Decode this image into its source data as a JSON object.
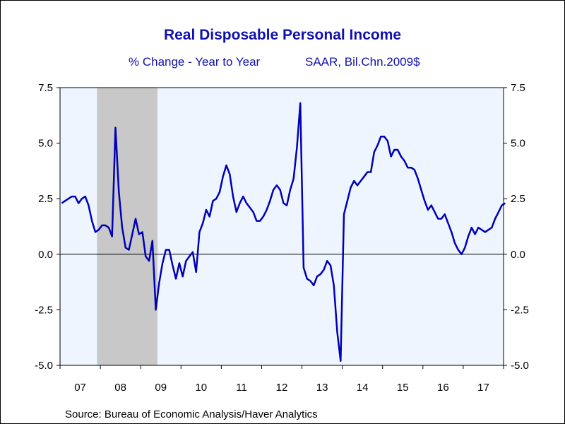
{
  "colors": {
    "line": "#0000b4",
    "plot_background": "#eef5fe",
    "recession_shading": "#c8c8c8",
    "title": "#1010b0"
  },
  "chart_data": {
    "type": "line",
    "title": "Real Disposable Personal Income",
    "subtitle_left": "% Change - Year to Year",
    "subtitle_right": "SAAR, Bil.Chn.2009$",
    "source": "Source:  Bureau of Economic Analysis/Haver Analytics",
    "ylim": [
      -5.0,
      7.5
    ],
    "yticks": [
      -5.0,
      -2.5,
      0.0,
      2.5,
      5.0,
      7.5
    ],
    "ytick_labels": [
      "-5.0",
      "-2.5",
      "0.0",
      "2.5",
      "5.0",
      "7.5"
    ],
    "ytick_labels_right": [
      "-5.0",
      "-2.5",
      "0.0",
      "2.5",
      "5.0",
      "7.5"
    ],
    "xlim": [
      "2007-01",
      "2017-12"
    ],
    "x_tick_labels": [
      "07",
      "08",
      "09",
      "10",
      "11",
      "12",
      "13",
      "14",
      "15",
      "16",
      "17"
    ],
    "zero_line": true,
    "grid": false,
    "recession": {
      "start": "2007-12",
      "end": "2009-06"
    },
    "series": [
      {
        "frequency": "monthly",
        "start": "2007-01",
        "values": [
          2.3,
          2.4,
          2.5,
          2.6,
          2.6,
          2.3,
          2.5,
          2.6,
          2.2,
          1.5,
          1.0,
          1.1,
          1.3,
          1.3,
          1.2,
          0.8,
          5.7,
          2.8,
          1.2,
          0.3,
          0.2,
          0.9,
          1.6,
          0.9,
          1.0,
          -0.1,
          -0.3,
          0.6,
          -2.5,
          -1.3,
          -0.4,
          0.2,
          0.2,
          -0.5,
          -1.1,
          -0.4,
          -1.0,
          -0.3,
          -0.1,
          0.1,
          -0.8,
          1.0,
          1.4,
          2.0,
          1.7,
          2.4,
          2.5,
          2.8,
          3.5,
          4.0,
          3.6,
          2.6,
          1.9,
          2.3,
          2.6,
          2.3,
          2.1,
          1.9,
          1.5,
          1.5,
          1.7,
          2.0,
          2.4,
          2.9,
          3.1,
          2.9,
          2.3,
          2.2,
          2.9,
          3.4,
          4.8,
          6.8,
          -0.6,
          -1.1,
          -1.2,
          -1.4,
          -1.0,
          -0.9,
          -0.7,
          -0.3,
          -0.5,
          -1.4,
          -3.5,
          -4.8,
          1.8,
          2.4,
          3.0,
          3.3,
          3.1,
          3.3,
          3.5,
          3.7,
          3.7,
          4.6,
          4.9,
          5.3,
          5.3,
          5.1,
          4.4,
          4.7,
          4.7,
          4.4,
          4.2,
          3.9,
          3.9,
          3.8,
          3.4,
          2.9,
          2.4,
          2.0,
          2.2,
          1.9,
          1.6,
          1.6,
          1.8,
          1.4,
          1.0,
          0.5,
          0.2,
          0.0,
          0.3,
          0.8,
          1.2,
          0.9,
          1.2,
          1.1,
          1.0,
          1.1,
          1.2,
          1.6,
          1.9,
          2.2,
          2.3
        ]
      }
    ]
  }
}
